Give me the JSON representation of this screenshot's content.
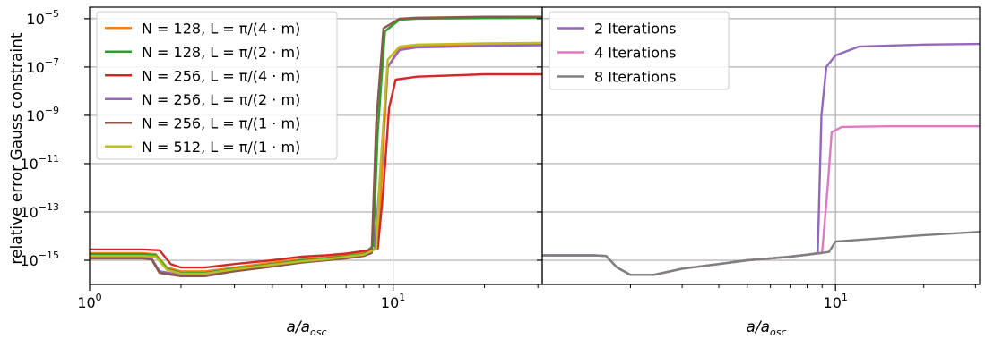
{
  "figure": {
    "ylabel": "relative error Gauss constraint",
    "xlabel_left": "a/a",
    "xlabel_right": "a/a",
    "xlabel_sub": "osc"
  },
  "chart_data": [
    {
      "type": "line",
      "panel": "left",
      "xscale": "log",
      "yscale": "log",
      "xlim": [
        1,
        31
      ],
      "ylim": [
        1e-16,
        3e-05
      ],
      "xticks": [
        {
          "value": 1,
          "base": "10",
          "exp": "0"
        },
        {
          "value": 10,
          "base": "10",
          "exp": "1"
        }
      ],
      "yticks": [
        {
          "value": 1e-15,
          "base": "10",
          "exp": "−15"
        },
        {
          "value": 1e-13,
          "base": "10",
          "exp": "−13"
        },
        {
          "value": 1e-11,
          "base": "10",
          "exp": "−11"
        },
        {
          "value": 1e-09,
          "base": "10",
          "exp": "−9"
        },
        {
          "value": 1e-07,
          "base": "10",
          "exp": "−7"
        },
        {
          "value": 1e-05,
          "base": "10",
          "exp": "−5"
        }
      ],
      "grid": true,
      "legend_position": "top-left",
      "series": [
        {
          "name": "N = 128, L = π/(4 · m)",
          "color": "#ff7f0e",
          "points": [
            [
              1,
              2e-15
            ],
            [
              1.5,
              2e-15
            ],
            [
              1.65,
              1.8e-15
            ],
            [
              1.8,
              5e-16
            ],
            [
              2,
              3.5e-16
            ],
            [
              2.4,
              3.5e-16
            ],
            [
              3,
              5e-16
            ],
            [
              4,
              8e-16
            ],
            [
              5,
              1.1e-15
            ],
            [
              6,
              1.3e-15
            ],
            [
              7,
              1.6e-15
            ],
            [
              8,
              2e-15
            ],
            [
              8.7,
              3e-15
            ],
            [
              9.0,
              3e-14
            ],
            [
              9.6,
              1e-07
            ],
            [
              10.5,
              6e-07
            ],
            [
              12,
              7.5e-07
            ],
            [
              15,
              8e-07
            ],
            [
              20,
              8.5e-07
            ],
            [
              31,
              9e-07
            ]
          ]
        },
        {
          "name": "N = 128, L = π/(2 · m)",
          "color": "#2ca02c",
          "points": [
            [
              1,
              1.8e-15
            ],
            [
              1.5,
              1.8e-15
            ],
            [
              1.65,
              1.6e-15
            ],
            [
              1.8,
              4.5e-16
            ],
            [
              2,
              3e-16
            ],
            [
              2.4,
              3e-16
            ],
            [
              3,
              4.5e-16
            ],
            [
              4,
              7e-16
            ],
            [
              5,
              1e-15
            ],
            [
              6,
              1.2e-15
            ],
            [
              7,
              1.5e-15
            ],
            [
              8,
              1.8e-15
            ],
            [
              8.6,
              4e-15
            ],
            [
              8.9,
              2e-10
            ],
            [
              9.4,
              3e-06
            ],
            [
              10.5,
              9e-06
            ],
            [
              12,
              1e-05
            ],
            [
              20,
              1.05e-05
            ],
            [
              31,
              1.1e-05
            ]
          ]
        },
        {
          "name": "N = 256, L = π/(4 · m)",
          "color": "#d62728",
          "points": [
            [
              1,
              2.8e-15
            ],
            [
              1.5,
              2.8e-15
            ],
            [
              1.7,
              2.6e-15
            ],
            [
              1.85,
              7e-16
            ],
            [
              2,
              5e-16
            ],
            [
              2.4,
              5e-16
            ],
            [
              3,
              7e-16
            ],
            [
              4,
              1e-15
            ],
            [
              5,
              1.4e-15
            ],
            [
              6,
              1.6e-15
            ],
            [
              7,
              1.9e-15
            ],
            [
              8,
              2.4e-15
            ],
            [
              8.9,
              3e-15
            ],
            [
              9.3,
              1e-12
            ],
            [
              9.7,
              2e-09
            ],
            [
              10.2,
              3e-08
            ],
            [
              12,
              4e-08
            ],
            [
              20,
              5e-08
            ],
            [
              31,
              5e-08
            ]
          ]
        },
        {
          "name": "N = 256, L = π/(2 · m)",
          "color": "#9467bd",
          "points": [
            [
              1,
              1.3e-15
            ],
            [
              1.5,
              1.3e-15
            ],
            [
              1.6,
              1.2e-15
            ],
            [
              1.7,
              3.5e-16
            ],
            [
              2,
              2.5e-16
            ],
            [
              2.4,
              2.5e-16
            ],
            [
              3,
              4e-16
            ],
            [
              4,
              6e-16
            ],
            [
              5,
              9e-16
            ],
            [
              6,
              1.1e-15
            ],
            [
              7,
              1.3e-15
            ],
            [
              8,
              1.6e-15
            ],
            [
              8.7,
              3e-15
            ],
            [
              9.0,
              1e-12
            ],
            [
              9.6,
              1e-07
            ],
            [
              10.5,
              5e-07
            ],
            [
              12,
              6.5e-07
            ],
            [
              20,
              7.5e-07
            ],
            [
              31,
              8e-07
            ]
          ]
        },
        {
          "name": "N = 256, L = π/(1 · m)",
          "color": "#8c564b",
          "points": [
            [
              1,
              1.2e-15
            ],
            [
              1.5,
              1.2e-15
            ],
            [
              1.6,
              1.1e-15
            ],
            [
              1.7,
              3e-16
            ],
            [
              2,
              2.2e-16
            ],
            [
              2.4,
              2.2e-16
            ],
            [
              3,
              3.5e-16
            ],
            [
              4,
              5.5e-16
            ],
            [
              5,
              8e-16
            ],
            [
              6,
              1e-15
            ],
            [
              7,
              1.2e-15
            ],
            [
              8,
              1.5e-15
            ],
            [
              8.5,
              2e-15
            ],
            [
              8.8,
              5e-10
            ],
            [
              9.3,
              4e-06
            ],
            [
              10.5,
              1e-05
            ],
            [
              12,
              1.1e-05
            ],
            [
              20,
              1.2e-05
            ],
            [
              31,
              1.2e-05
            ]
          ]
        },
        {
          "name": "N = 512, L = π/(1 · m)",
          "color": "#bcbd22",
          "points": [
            [
              1,
              1.5e-15
            ],
            [
              1.5,
              1.5e-15
            ],
            [
              1.65,
              1.4e-15
            ],
            [
              1.8,
              4e-16
            ],
            [
              2,
              2.8e-16
            ],
            [
              2.4,
              2.8e-16
            ],
            [
              3,
              4.2e-16
            ],
            [
              4,
              6.5e-16
            ],
            [
              5,
              9e-16
            ],
            [
              6,
              1.1e-15
            ],
            [
              7,
              1.4e-15
            ],
            [
              8,
              1.7e-15
            ],
            [
              8.8,
              3e-15
            ],
            [
              9.1,
              1e-11
            ],
            [
              9.6,
              2e-07
            ],
            [
              10.5,
              7e-07
            ],
            [
              12,
              8.5e-07
            ],
            [
              20,
              9.5e-07
            ],
            [
              31,
              1e-06
            ]
          ]
        }
      ]
    },
    {
      "type": "line",
      "panel": "right",
      "xscale": "log",
      "yscale": "log",
      "xlim": [
        1,
        31
      ],
      "ylim": [
        1e-16,
        3e-05
      ],
      "xticks": [
        {
          "value": 10,
          "base": "10",
          "exp": "1"
        }
      ],
      "grid": true,
      "legend_position": "top-left",
      "series": [
        {
          "name": "2 Iterations",
          "color": "#9467bd",
          "points": [
            [
              1,
              1.6e-15
            ],
            [
              1.5,
              1.6e-15
            ],
            [
              1.65,
              1.5e-15
            ],
            [
              1.8,
              5e-16
            ],
            [
              2,
              2.5e-16
            ],
            [
              2.4,
              2.5e-16
            ],
            [
              3,
              4.5e-16
            ],
            [
              4,
              7e-16
            ],
            [
              5,
              1e-15
            ],
            [
              6,
              1.2e-15
            ],
            [
              7,
              1.4e-15
            ],
            [
              8,
              1.7e-15
            ],
            [
              8.7,
              2e-15
            ],
            [
              8.95,
              1e-09
            ],
            [
              9.3,
              1e-07
            ],
            [
              10,
              3e-07
            ],
            [
              12,
              7e-07
            ],
            [
              20,
              8.5e-07
            ],
            [
              31,
              9e-07
            ]
          ]
        },
        {
          "name": "4 Iterations",
          "color": "#e377c2",
          "points": [
            [
              1,
              1.6e-15
            ],
            [
              1.5,
              1.6e-15
            ],
            [
              1.65,
              1.5e-15
            ],
            [
              1.8,
              5e-16
            ],
            [
              2,
              2.5e-16
            ],
            [
              2.4,
              2.5e-16
            ],
            [
              3,
              4.5e-16
            ],
            [
              4,
              7e-16
            ],
            [
              5,
              1e-15
            ],
            [
              6,
              1.2e-15
            ],
            [
              7,
              1.4e-15
            ],
            [
              8,
              1.7e-15
            ],
            [
              9.0,
              2e-15
            ],
            [
              9.4,
              1e-12
            ],
            [
              9.7,
              2e-10
            ],
            [
              10.5,
              3.3e-10
            ],
            [
              15,
              3.5e-10
            ],
            [
              31,
              3.5e-10
            ]
          ]
        },
        {
          "name": "8 Iterations",
          "color": "#7f7f7f",
          "points": [
            [
              1,
              1.6e-15
            ],
            [
              1.5,
              1.6e-15
            ],
            [
              1.65,
              1.5e-15
            ],
            [
              1.8,
              5e-16
            ],
            [
              2,
              2.5e-16
            ],
            [
              2.4,
              2.5e-16
            ],
            [
              3,
              4.5e-16
            ],
            [
              4,
              7e-16
            ],
            [
              5,
              1e-15
            ],
            [
              6,
              1.2e-15
            ],
            [
              7,
              1.4e-15
            ],
            [
              8,
              1.7e-15
            ],
            [
              9.5,
              2.2e-15
            ],
            [
              10,
              6e-15
            ],
            [
              12,
              7e-15
            ],
            [
              20,
              1.1e-14
            ],
            [
              31,
              1.5e-14
            ]
          ]
        }
      ]
    }
  ]
}
